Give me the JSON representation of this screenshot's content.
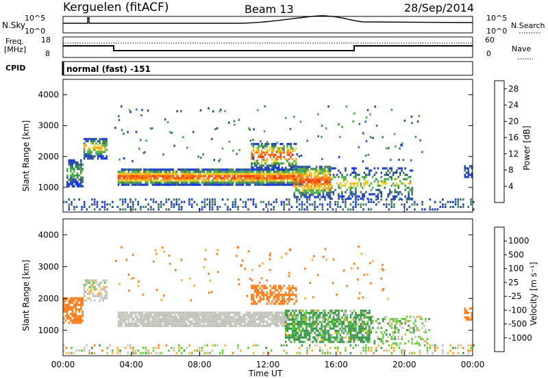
{
  "header": {
    "station": "Kerguelen (fitACF)",
    "beam": "Beam 13",
    "date": "28/Sep/2014"
  },
  "noise_panel": {
    "left_label": "N.Sky",
    "right_label": "N.Search",
    "left_ticks": [
      "10^5",
      "10^0"
    ],
    "right_ticks": [
      "10^5",
      "10^0"
    ]
  },
  "freq_panel": {
    "left_label_1": "Freq.",
    "left_label_2": "[MHz]",
    "right_label": "Nave",
    "left_ticks": [
      "18",
      "8"
    ],
    "right_ticks": [
      "60",
      "0"
    ]
  },
  "cpid": {
    "label": "CPID",
    "text": "normal (fast) -151"
  },
  "colors": {
    "power": [
      "#1030ff",
      "#2a4aa8",
      "#3f7f5a",
      "#4cae4c",
      "#e6d21e",
      "#ffa01e",
      "#ff7010",
      "#ff3a10",
      "#e60a0a"
    ],
    "velocity": [
      "#ea1010",
      "#ff4a18",
      "#ff7e1e",
      "#ffb02e",
      "#c8c8c0",
      "#c0c0b8",
      "#66cc33",
      "#3a9a4a",
      "#3a6aa8",
      "#1e3aa8"
    ]
  },
  "chart_data": [
    {
      "type": "heatmap",
      "panel": "power",
      "ylabel": "Slant Range [km]",
      "yticks": [
        "1000",
        "2000",
        "3000",
        "4000"
      ],
      "ylim": [
        200,
        4500
      ],
      "xlim": [
        0,
        24
      ],
      "colorbar_label": "Power [dB]",
      "colorbar_ticks": [
        "4",
        "8",
        "12",
        "16",
        "20",
        "24",
        "28"
      ],
      "colorbar_range": [
        0,
        30
      ],
      "features": [
        {
          "name": "main band",
          "t": [
            3.2,
            14.0
          ],
          "range_km": [
            1000,
            1500
          ],
          "peak_db": 28
        },
        {
          "name": "near echoes",
          "t": [
            0,
            24
          ],
          "range_km": [
            200,
            600
          ],
          "peak_db": 8
        },
        {
          "name": "early band",
          "t": [
            1.2,
            2.6
          ],
          "range_km": [
            1900,
            2600
          ],
          "peak_db": 20
        },
        {
          "name": "high band",
          "t": [
            11.0,
            13.5
          ],
          "range_km": [
            1600,
            2400
          ],
          "peak_db": 28
        },
        {
          "name": "afternoon band",
          "t": [
            13.5,
            15.5
          ],
          "range_km": [
            700,
            1600
          ],
          "peak_db": 28
        }
      ]
    },
    {
      "type": "heatmap",
      "panel": "velocity",
      "ylabel": "Slant Range [km]",
      "yticks": [
        "1000",
        "2000",
        "3000",
        "4000"
      ],
      "ylim": [
        200,
        4500
      ],
      "xlim": [
        0,
        24
      ],
      "xticks": [
        "00:00",
        "04:00",
        "08:00",
        "12:00",
        "16:00",
        "20:00",
        "00:00"
      ],
      "xlabel": "Time UT",
      "colorbar_label": "Velocity [m s⁻¹]",
      "colorbar_ticks": [
        "1000",
        "500",
        "100",
        "25",
        "-25",
        "-100",
        "-500",
        "-1000"
      ],
      "features": [
        {
          "name": "ground scatter band",
          "t": [
            3.2,
            13.0
          ],
          "range_km": [
            1100,
            1500
          ],
          "velocity": 0
        },
        {
          "name": "early flow",
          "t": [
            0.0,
            1.2
          ],
          "range_km": [
            1200,
            2000
          ],
          "velocity": -300
        },
        {
          "name": "high band",
          "t": [
            11.0,
            13.5
          ],
          "range_km": [
            1800,
            2400
          ],
          "velocity": -300
        },
        {
          "name": "afternoon flow",
          "t": [
            13.0,
            18.0
          ],
          "range_km": [
            600,
            1600
          ],
          "velocity": 200
        }
      ]
    }
  ]
}
